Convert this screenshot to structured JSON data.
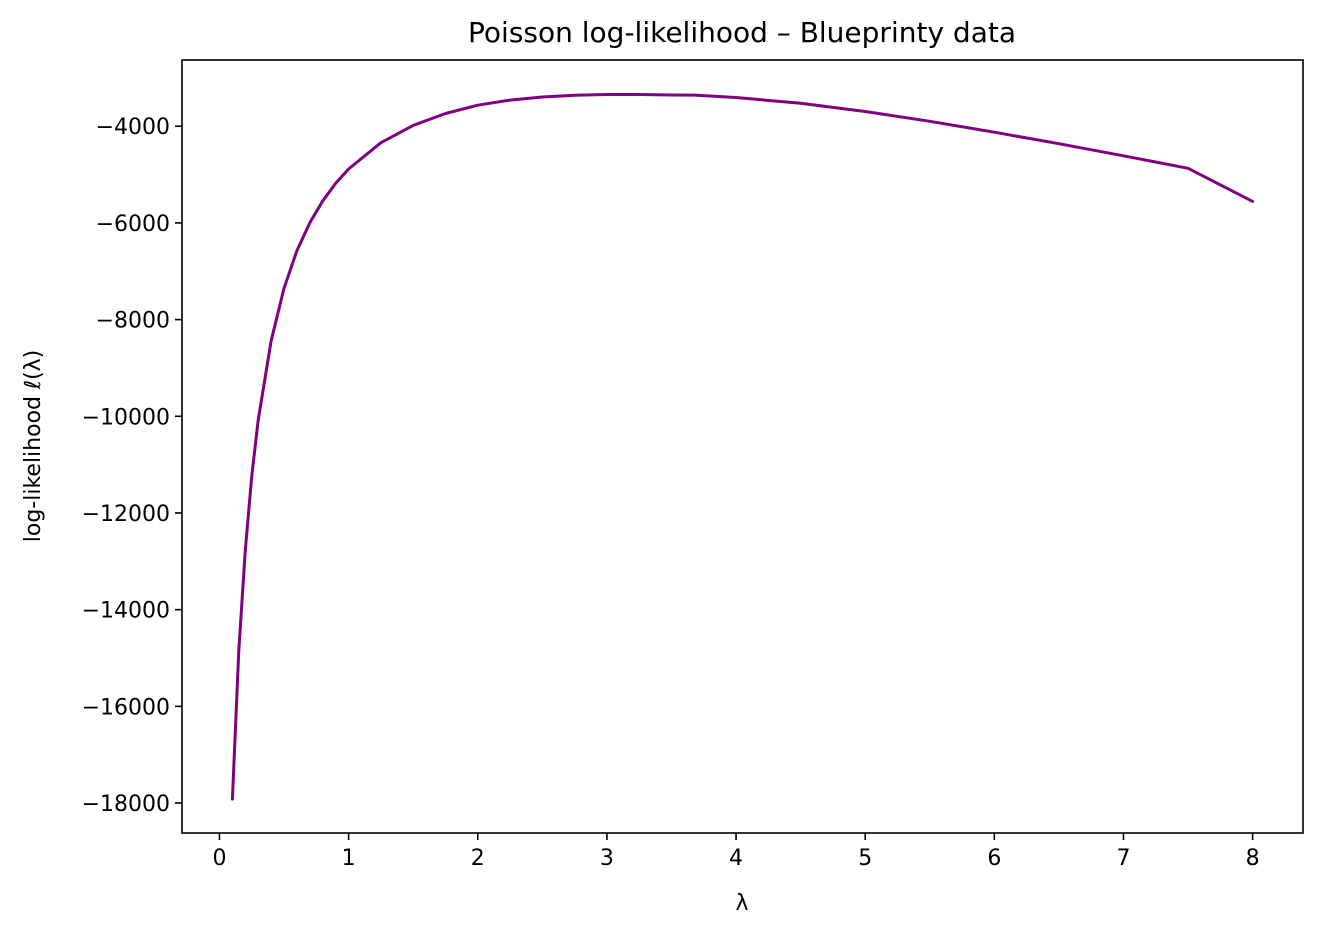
{
  "chart_data": {
    "type": "line",
    "title": "Poisson log-likelihood – Blueprinty data",
    "xlabel": "λ",
    "ylabel": "log-likelihood  ℓ(λ)",
    "xlim": [
      -0.29,
      8.39
    ],
    "ylim": [
      -18620,
      -2630
    ],
    "xticks": [
      0,
      1,
      2,
      3,
      4,
      5,
      6,
      7,
      8
    ],
    "xtick_labels": [
      "0",
      "1",
      "2",
      "3",
      "4",
      "5",
      "6",
      "7",
      "8"
    ],
    "yticks": [
      -18000,
      -16000,
      -14000,
      -12000,
      -10000,
      -8000,
      -6000,
      -4000
    ],
    "ytick_labels": [
      "−18000",
      "−16000",
      "−14000",
      "−12000",
      "−10000",
      "−8000",
      "−6000",
      "−4000"
    ],
    "grid": false,
    "series": [
      {
        "color": "#800080",
        "x": [
          0.1,
          0.15,
          0.2,
          0.25,
          0.3,
          0.4,
          0.5,
          0.6,
          0.7,
          0.8,
          0.9,
          1.0,
          1.25,
          1.5,
          1.75,
          2.0,
          2.25,
          2.5,
          2.75,
          3.0,
          3.25,
          3.5,
          3.68,
          4.0,
          4.5,
          5.0,
          5.5,
          6.0,
          6.5,
          7.0,
          7.5,
          8.0
        ],
        "y": [
          -17919,
          -14848,
          -12768,
          -11248,
          -10078,
          -8442,
          -7352,
          -6575,
          -5994,
          -5542,
          -5181,
          -4885,
          -4341,
          -3982,
          -3737,
          -3566,
          -3460,
          -3395,
          -3359,
          -3344,
          -3344,
          -3355,
          -3356,
          -3405,
          -3526,
          -3695,
          -3898,
          -4123,
          -4362,
          -4612,
          -4871,
          -5555
        ]
      }
    ]
  }
}
